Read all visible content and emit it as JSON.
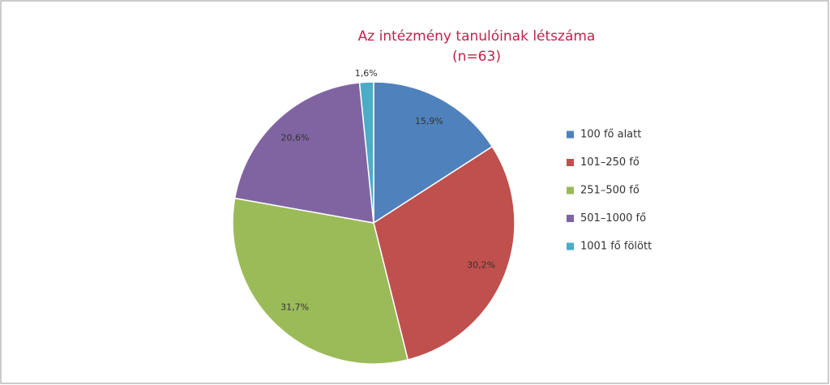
{
  "chart_data": {
    "type": "pie",
    "title": "Az intézmény tanulóinak létszáma",
    "subtitle": "(n=63)",
    "categories": [
      "100 fő alatt",
      "101–250 fő",
      "251–500 fő",
      "501–1000 fő",
      "1001 fő fölött"
    ],
    "values": [
      15.9,
      30.2,
      31.7,
      20.6,
      1.6
    ],
    "value_labels": [
      "15,9%",
      "30,2%",
      "31,7%",
      "20,6%",
      "1,6%"
    ],
    "colors": [
      "#4f81bd",
      "#c0504d",
      "#9bbb59",
      "#8064a2",
      "#4bacc6"
    ],
    "legend": "right"
  }
}
